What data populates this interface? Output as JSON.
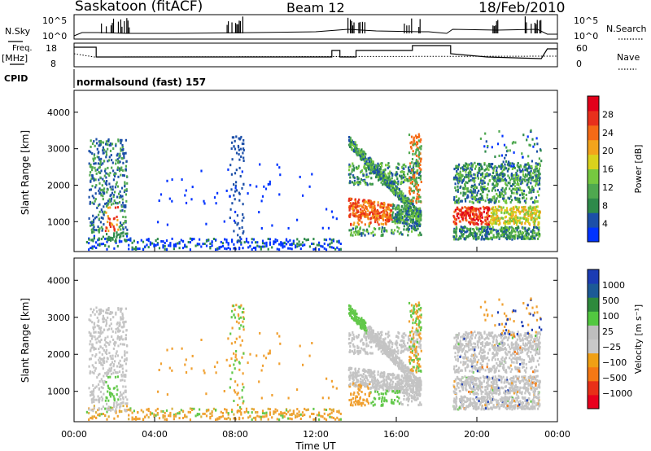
{
  "header": {
    "station": "Saskatoon (fitACF)",
    "beam": "Beam 12",
    "date": "18/Feb/2010"
  },
  "nsky": {
    "left_label": "N.Sky",
    "left_ticks": [
      "10^5",
      "10^0"
    ],
    "right_label": "N.Search",
    "right_ticks": [
      "10^5",
      "10^0"
    ]
  },
  "freq": {
    "left_label_line1": "Freq.",
    "left_label_line2": "[MHz]",
    "left_ticks": [
      "18",
      "8"
    ],
    "right_label": "Nave",
    "right_ticks": [
      "60",
      "0"
    ]
  },
  "cpid": {
    "label": "CPID",
    "value": "normalsound (fast) 157"
  },
  "chart_data": [
    {
      "type": "heatmap",
      "name": "power",
      "ylabel": "Slant Range [km]",
      "ylim": [
        180,
        4600
      ],
      "yticks": [
        "1000",
        "2000",
        "3000",
        "4000"
      ],
      "xlim": [
        0,
        24
      ],
      "colorbar": {
        "label": "Power [dB]",
        "ticks": [
          "4",
          "8",
          "12",
          "16",
          "20",
          "24",
          "28"
        ],
        "colors": [
          "#0033ff",
          "#1c4fa8",
          "#2e8a4a",
          "#4fa84f",
          "#76c840",
          "#dad21c",
          "#f3a41c",
          "#f56a16",
          "#e8301c",
          "#e2001a"
        ]
      },
      "regions": [
        {
          "t0": 0.7,
          "t1": 2.6,
          "r0": 400,
          "r1": 3400,
          "kind": "scatter-blue"
        },
        {
          "t0": 1.5,
          "t1": 2.1,
          "r0": 700,
          "r1": 1400,
          "kind": "hot"
        },
        {
          "t0": 0.5,
          "t1": 13.0,
          "r0": 200,
          "r1": 600,
          "kind": "low-band"
        },
        {
          "t0": 13.6,
          "t1": 17.2,
          "r0": 600,
          "r1": 3500,
          "kind": "arc"
        },
        {
          "t0": 18.8,
          "t1": 23.0,
          "r0": 400,
          "r1": 2600,
          "kind": "dense"
        }
      ]
    },
    {
      "type": "heatmap",
      "name": "velocity",
      "ylabel": "Slant Range [km]",
      "ylim": [
        180,
        4600
      ],
      "yticks": [
        "1000",
        "2000",
        "3000",
        "4000"
      ],
      "xlabel": "Time UT",
      "xticks": [
        "00:00",
        "04:00",
        "08:00",
        "12:00",
        "16:00",
        "20:00",
        "00:00"
      ],
      "xlim": [
        0,
        24
      ],
      "colorbar": {
        "label": "Velocity [m s⁻¹]",
        "ticks": [
          "1000",
          "500",
          "100",
          "25",
          "−25",
          "−100",
          "−500",
          "−1000"
        ],
        "colors": [
          "#1c3cb4",
          "#1c5a96",
          "#2e8a3c",
          "#52c840",
          "#bebebe",
          "#c8c8c8",
          "#f0a014",
          "#f57814",
          "#e83018",
          "#e8001e"
        ]
      }
    }
  ],
  "colors": {
    "frame": "#000000",
    "nsky_line": "#000000"
  }
}
